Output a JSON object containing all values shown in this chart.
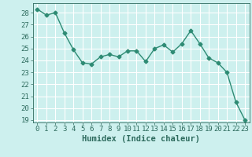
{
  "x": [
    0,
    1,
    2,
    3,
    4,
    5,
    6,
    7,
    8,
    9,
    10,
    11,
    12,
    13,
    14,
    15,
    16,
    17,
    18,
    19,
    20,
    21,
    22,
    23
  ],
  "y": [
    28.3,
    27.8,
    28.0,
    26.3,
    24.9,
    23.8,
    23.7,
    24.3,
    24.5,
    24.3,
    24.8,
    24.8,
    23.9,
    25.0,
    25.3,
    24.7,
    25.4,
    26.5,
    25.4,
    24.2,
    23.8,
    23.0,
    20.5,
    19.0
  ],
  "line_color": "#2e8b74",
  "marker": "D",
  "markersize": 2.5,
  "linewidth": 1.0,
  "xlabel": "Humidex (Indice chaleur)",
  "ylim_min": 18.8,
  "ylim_max": 28.8,
  "xlim_min": -0.5,
  "xlim_max": 23.5,
  "yticks": [
    19,
    20,
    21,
    22,
    23,
    24,
    25,
    26,
    27,
    28
  ],
  "xticks": [
    0,
    1,
    2,
    3,
    4,
    5,
    6,
    7,
    8,
    9,
    10,
    11,
    12,
    13,
    14,
    15,
    16,
    17,
    18,
    19,
    20,
    21,
    22,
    23
  ],
  "bg_color": "#cdf0ee",
  "grid_color": "#ffffff",
  "grid_color_minor": "#e8fafa",
  "tick_color": "#2e6b5e",
  "label_color": "#2e6b5e",
  "font_size": 6.5,
  "xlabel_fontsize": 7.5
}
